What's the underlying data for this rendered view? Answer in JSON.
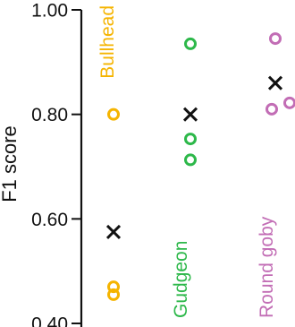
{
  "chart_data": {
    "type": "scatter",
    "title": "",
    "xlabel": "",
    "ylabel": "F1 score",
    "ylim": [
      0.4,
      1.0
    ],
    "yticks": [
      "0.40",
      "0.60",
      "0.80",
      "1.00"
    ],
    "ytick_values": [
      0.4,
      0.6,
      0.8,
      1.0
    ],
    "grid": false,
    "categories": [
      "Bullhead",
      "Gudgeon",
      "Round goby"
    ],
    "series": [
      {
        "name": "Bullhead",
        "color": "#F5B400",
        "marker": "circle",
        "points": [
          {
            "x": "Bullhead",
            "y": 0.8
          },
          {
            "x": "Bullhead",
            "y": 0.47
          },
          {
            "x": "Bullhead",
            "y": 0.455
          }
        ]
      },
      {
        "name": "Gudgeon",
        "color": "#2DB84A",
        "marker": "circle",
        "points": [
          {
            "x": "Gudgeon",
            "y": 0.935
          },
          {
            "x": "Gudgeon",
            "y": 0.753
          },
          {
            "x": "Gudgeon",
            "y": 0.713
          }
        ]
      },
      {
        "name": "Round goby",
        "color": "#C26DB5",
        "marker": "circle",
        "points": [
          {
            "x": "Round goby",
            "y": 0.945
          },
          {
            "x": "Round goby",
            "y": 0.822
          },
          {
            "x": "Round goby",
            "y": 0.81
          }
        ]
      },
      {
        "name": "",
        "color": "#111111",
        "marker": "x",
        "points": [
          {
            "x": "Bullhead",
            "y": 0.575
          },
          {
            "x": "Gudgeon",
            "y": 0.8
          },
          {
            "x": "Round goby",
            "y": 0.86
          }
        ]
      }
    ],
    "category_labels": [
      {
        "text": "Bullhead",
        "color": "#F5B400"
      },
      {
        "text": "Gudgeon",
        "color": "#2DB84A"
      },
      {
        "text": "Round goby",
        "color": "#C26DB5"
      }
    ]
  }
}
